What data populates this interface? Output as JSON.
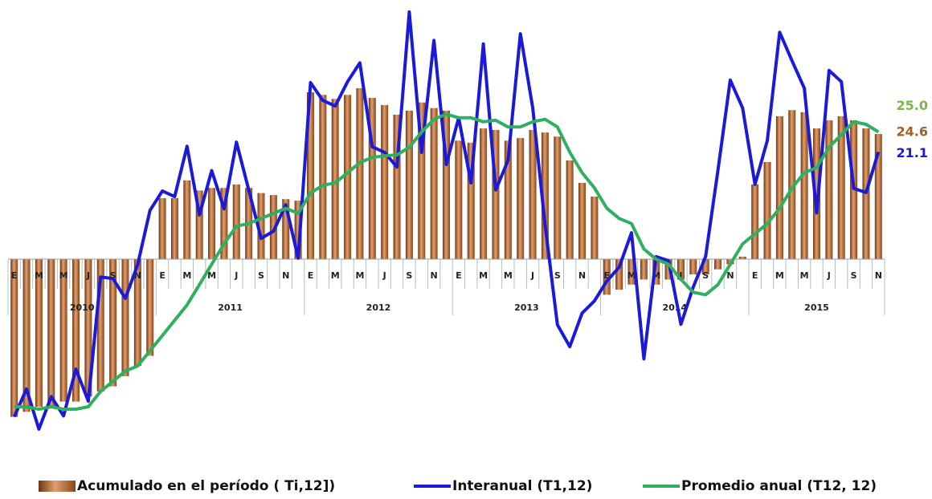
{
  "chart_data": {
    "type": "bar-line",
    "categories": [
      "E",
      null,
      "M",
      null,
      "M",
      null,
      "J",
      null,
      "S",
      null,
      "N",
      null,
      "E",
      null,
      "M",
      null,
      "M",
      null,
      "J",
      null,
      "S",
      null,
      "N",
      null,
      "E",
      null,
      "M",
      null,
      "M",
      null,
      "J",
      null,
      "S",
      null,
      "N",
      null,
      "E",
      null,
      "M",
      null,
      "M",
      null,
      "J",
      null,
      "S",
      null,
      "N",
      null,
      "E",
      null,
      "M",
      null,
      "M",
      null,
      "J",
      null,
      "S",
      null,
      "N",
      null,
      "E",
      null,
      "M",
      null,
      "M",
      null,
      "J",
      null,
      "S",
      null,
      "N"
    ],
    "years": [
      "2010",
      "2011",
      "2012",
      "2013",
      "2014",
      "2015"
    ],
    "ylim": [
      -35,
      50
    ],
    "series": [
      {
        "name": "Acumulado en el período ( Ti,12])",
        "kind": "bar",
        "color": "#9a4f1c",
        "values": [
          -31,
          -30,
          -29,
          -29,
          -28,
          -28,
          -27,
          -26,
          -25,
          -23,
          -21,
          -19,
          12,
          12,
          15.5,
          13.5,
          14,
          14,
          14.7,
          14,
          13,
          12.6,
          11.8,
          11.5,
          32.8,
          32.3,
          31.5,
          32.3,
          33.6,
          31.7,
          30.3,
          28.4,
          29.2,
          30.8,
          29.7,
          29.2,
          23.3,
          22.9,
          25.7,
          25.4,
          23.3,
          23.8,
          25.4,
          24.9,
          24.1,
          19.4,
          15,
          12.3,
          -7,
          -6,
          -5,
          -4,
          -5,
          -4,
          -4,
          -3,
          -3,
          -2,
          -1,
          0.5,
          14.7,
          19.1,
          28.1,
          29.3,
          28.9,
          25.7,
          27.3,
          28.1,
          27.3,
          25.7,
          24.6
        ],
        "value_labels": [
          null,
          null,
          null,
          null,
          null,
          null,
          null,
          null,
          null,
          null,
          null,
          null,
          null,
          null,
          null,
          null,
          null,
          null,
          null,
          null,
          null,
          null,
          null,
          null,
          null,
          null,
          null,
          null,
          null,
          null,
          null,
          null,
          null,
          null,
          null,
          null,
          null,
          null,
          null,
          null,
          null,
          null,
          null,
          null,
          null,
          null,
          null,
          null,
          null,
          null,
          null,
          null,
          null,
          null,
          null,
          null,
          null,
          null,
          null,
          null,
          null,
          null,
          null,
          null,
          null,
          null,
          null,
          null,
          null,
          null,
          "24.6"
        ],
        "label_color": "#a0602a"
      },
      {
        "name": "Interanual (T1,12)",
        "kind": "line",
        "color": "#1a1ad8",
        "values": [
          -31,
          -25.5,
          -33.4,
          -27,
          -30.8,
          -21.6,
          -27.9,
          -3.5,
          -3.8,
          -7.7,
          -1.1,
          9.6,
          13.4,
          12.3,
          22.2,
          8.7,
          17.4,
          9.9,
          23,
          13.6,
          4.1,
          5.5,
          10.7,
          0.2,
          34.7,
          31.2,
          30.1,
          34.9,
          38.6,
          22.1,
          21,
          18.1,
          48.6,
          21,
          43,
          18.6,
          27.8,
          15,
          42.3,
          13.6,
          19.4,
          44.3,
          29.7,
          6.8,
          -12.9,
          -17.2,
          -10.6,
          -8.2,
          -4.3,
          -1.6,
          5.2,
          -19.6,
          0.5,
          -0.3,
          -12.8,
          -5.5,
          0.5,
          17.5,
          35.2,
          29.7,
          14.7,
          23.3,
          44.6,
          39,
          33.6,
          9.1,
          37.1,
          34.9,
          13.9,
          13.1,
          21.1
        ],
        "value_labels": [
          null,
          null,
          null,
          null,
          null,
          null,
          null,
          null,
          null,
          null,
          null,
          null,
          null,
          null,
          null,
          null,
          null,
          null,
          null,
          null,
          null,
          null,
          null,
          null,
          null,
          null,
          null,
          null,
          null,
          null,
          null,
          null,
          null,
          null,
          null,
          null,
          null,
          null,
          null,
          null,
          null,
          null,
          null,
          null,
          null,
          null,
          null,
          null,
          null,
          null,
          null,
          null,
          null,
          null,
          null,
          null,
          null,
          null,
          null,
          null,
          null,
          null,
          null,
          null,
          null,
          null,
          null,
          null,
          null,
          null,
          "21.1"
        ],
        "label_color": "#1a1ad8"
      },
      {
        "name": "Promedio anual (T12, 12)",
        "kind": "line",
        "color": "#2fb060",
        "values": [
          -29,
          -29,
          -29.5,
          -29,
          -29.5,
          -29.5,
          -29,
          -26,
          -24,
          -22,
          -21,
          -18,
          -15,
          -12,
          -9,
          -5,
          -1,
          3,
          6.5,
          7,
          8,
          9,
          10,
          9,
          13,
          14.5,
          15,
          17,
          19,
          20,
          20.3,
          20.5,
          22,
          25,
          27.5,
          28.5,
          27.8,
          27.8,
          27,
          27.3,
          26,
          26,
          27,
          27.5,
          26,
          21,
          17,
          14,
          10,
          8,
          7,
          2,
          0,
          -1,
          -4,
          -6.5,
          -7,
          -5,
          -1,
          3,
          5,
          7,
          10,
          14,
          17,
          18,
          22,
          24.5,
          27,
          26.5,
          25.0
        ],
        "value_labels": [
          null,
          null,
          null,
          null,
          null,
          null,
          null,
          null,
          null,
          null,
          null,
          null,
          null,
          null,
          null,
          null,
          null,
          null,
          null,
          null,
          null,
          null,
          null,
          null,
          null,
          null,
          null,
          null,
          null,
          null,
          null,
          null,
          null,
          null,
          null,
          null,
          null,
          null,
          null,
          null,
          null,
          null,
          null,
          null,
          null,
          null,
          null,
          null,
          null,
          null,
          null,
          null,
          null,
          null,
          null,
          null,
          null,
          null,
          null,
          null,
          null,
          null,
          null,
          null,
          null,
          null,
          null,
          null,
          null,
          null,
          "25.0"
        ],
        "label_color": "#7ab648"
      }
    ]
  }
}
